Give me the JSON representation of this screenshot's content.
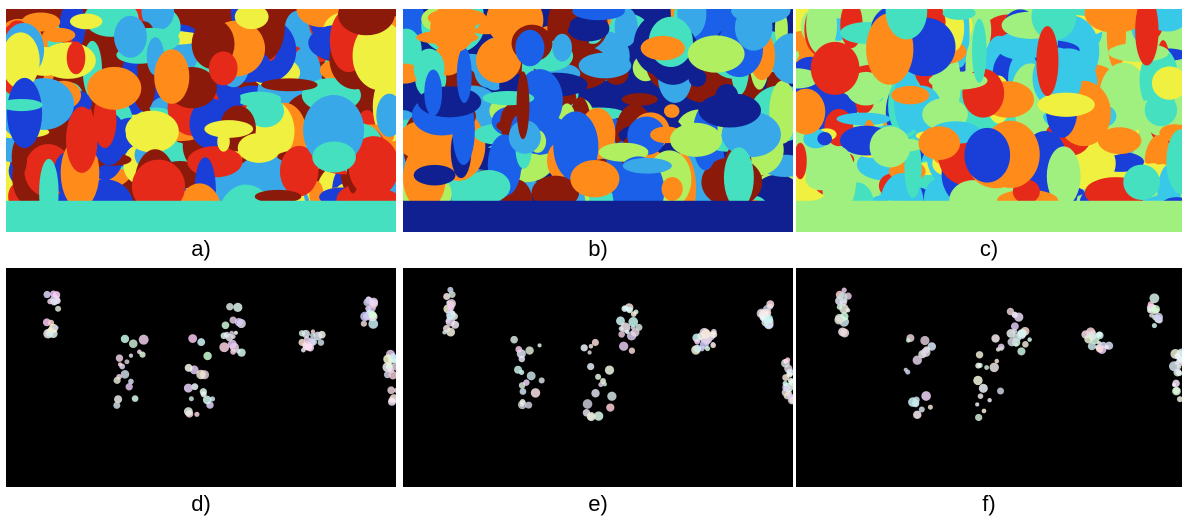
{
  "panels": [
    {
      "label": "a)"
    },
    {
      "label": "b)"
    },
    {
      "label": "c)"
    },
    {
      "label": "d)"
    },
    {
      "label": "e)"
    },
    {
      "label": "f)"
    }
  ]
}
